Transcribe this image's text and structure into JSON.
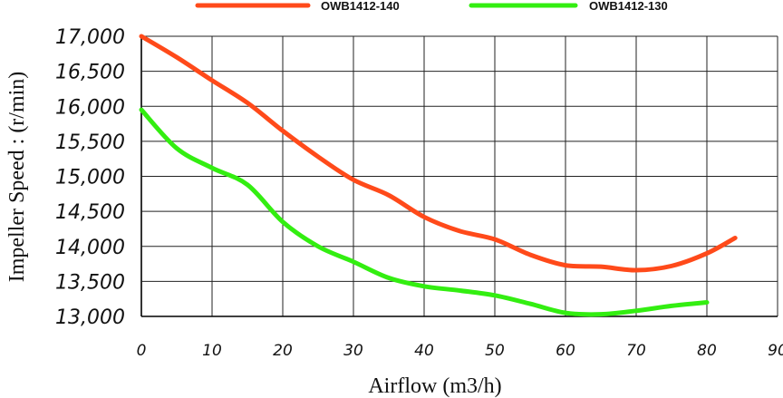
{
  "chart_data": {
    "type": "line",
    "xlabel": "Airflow (m3/h)",
    "ylabel": "Impeller  Speed :  (r/min)",
    "xlim": [
      0,
      90
    ],
    "ylim": [
      13000,
      17000
    ],
    "x_ticks": [
      "0",
      "10",
      "20",
      "30",
      "40",
      "50",
      "60",
      "70",
      "80",
      "90"
    ],
    "y_ticks": [
      "13,000",
      "13,500",
      "14,000",
      "14,500",
      "15,000",
      "15,500",
      "16,000",
      "16,500",
      "17,000"
    ],
    "grid": true,
    "legend_position": "top-center",
    "series": [
      {
        "name": "OWB1412-140",
        "color": "#ff4a1a",
        "x": [
          0,
          5,
          10,
          15,
          20,
          25,
          30,
          35,
          40,
          45,
          50,
          55,
          60,
          65,
          70,
          75,
          80,
          84
        ],
        "y": [
          17000,
          16700,
          16370,
          16050,
          15650,
          15280,
          14950,
          14730,
          14420,
          14220,
          14100,
          13880,
          13730,
          13710,
          13660,
          13720,
          13900,
          14120
        ]
      },
      {
        "name": "OWB1412-130",
        "color": "#33ee11",
        "x": [
          0,
          5,
          10,
          15,
          20,
          25,
          30,
          35,
          40,
          45,
          50,
          55,
          60,
          65,
          70,
          75,
          80
        ],
        "y": [
          15950,
          15400,
          15120,
          14880,
          14350,
          14000,
          13780,
          13550,
          13430,
          13370,
          13300,
          13180,
          13050,
          13030,
          13080,
          13150,
          13200
        ]
      }
    ]
  }
}
